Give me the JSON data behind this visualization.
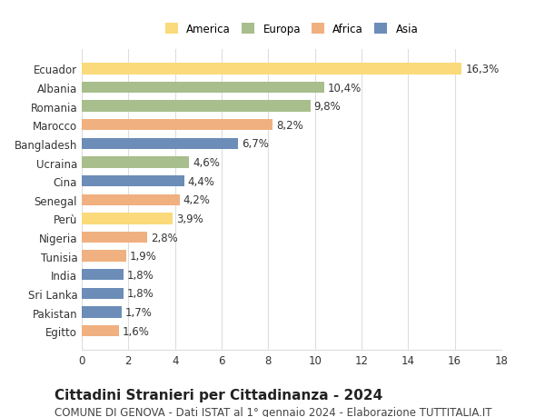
{
  "categories": [
    "Ecuador",
    "Albania",
    "Romania",
    "Marocco",
    "Bangladesh",
    "Ucraina",
    "Cina",
    "Senegal",
    "Perù",
    "Nigeria",
    "Tunisia",
    "India",
    "Sri Lanka",
    "Pakistan",
    "Egitto"
  ],
  "values": [
    16.3,
    10.4,
    9.8,
    8.2,
    6.7,
    4.6,
    4.4,
    4.2,
    3.9,
    2.8,
    1.9,
    1.8,
    1.8,
    1.7,
    1.6
  ],
  "labels": [
    "16,3%",
    "10,4%",
    "9,8%",
    "8,2%",
    "6,7%",
    "4,6%",
    "4,4%",
    "4,2%",
    "3,9%",
    "2,8%",
    "1,9%",
    "1,8%",
    "1,8%",
    "1,7%",
    "1,6%"
  ],
  "colors": [
    "#FADA7A",
    "#A8BE8C",
    "#A8BE8C",
    "#F0B080",
    "#6B8DB8",
    "#A8BE8C",
    "#6B8DB8",
    "#F0B080",
    "#FADA7A",
    "#F0B080",
    "#F0B080",
    "#6B8DB8",
    "#6B8DB8",
    "#6B8DB8",
    "#F0B080"
  ],
  "legend_labels": [
    "America",
    "Europa",
    "Africa",
    "Asia"
  ],
  "legend_colors": [
    "#FADA7A",
    "#A8BE8C",
    "#F0B080",
    "#6B8DB8"
  ],
  "title": "Cittadini Stranieri per Cittadinanza - 2024",
  "subtitle": "COMUNE DI GENOVA - Dati ISTAT al 1° gennaio 2024 - Elaborazione TUTTITALIA.IT",
  "xlim": [
    0,
    18
  ],
  "xticks": [
    0,
    2,
    4,
    6,
    8,
    10,
    12,
    14,
    16,
    18
  ],
  "background_color": "#ffffff",
  "grid_color": "#dddddd",
  "label_fontsize": 8.5,
  "title_fontsize": 11,
  "subtitle_fontsize": 8.5
}
